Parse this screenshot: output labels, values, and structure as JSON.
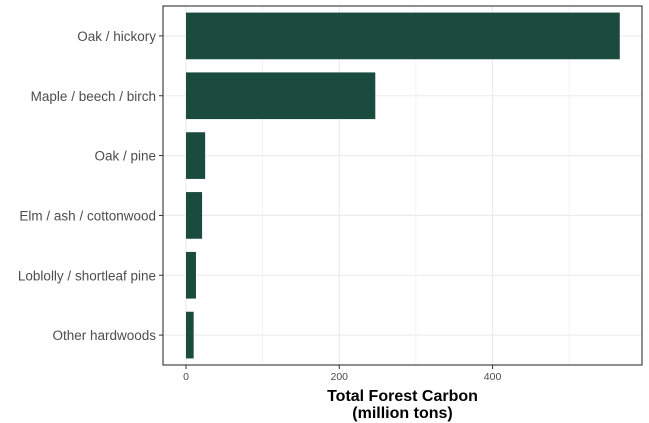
{
  "chart_data": {
    "type": "bar",
    "orientation": "horizontal",
    "categories": [
      "Oak / hickory",
      "Maple / beech / birch",
      "Oak / pine",
      "Elm / ash / cottonwood",
      "Loblolly / shortleaf pine",
      "Other hardwoods"
    ],
    "values": [
      566,
      247,
      25,
      21,
      13,
      10
    ],
    "xlabel_lines": [
      "Total Forest Carbon",
      "(million tons)"
    ],
    "ylabel": "",
    "title": "",
    "xlim": [
      -30,
      595
    ],
    "xticks": [
      0,
      200,
      400
    ],
    "bar_color": "#1b4a3e",
    "grid": true,
    "legend": "none"
  }
}
